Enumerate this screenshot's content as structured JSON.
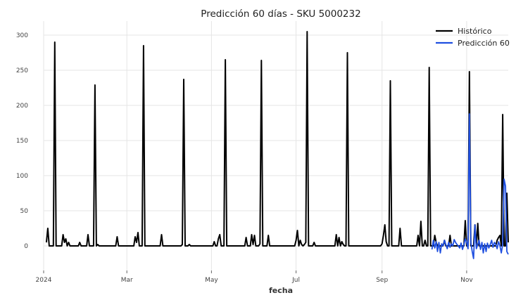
{
  "chart_data": {
    "type": "line",
    "title": "Predicción 60 días - SKU 5000232",
    "xlabel": "fecha",
    "ylabel": "",
    "x_range": [
      "2024-01-01",
      "2024-12-01"
    ],
    "ylim": [
      -35,
      320
    ],
    "yticks": [
      0,
      50,
      100,
      150,
      200,
      250,
      300
    ],
    "xticks": [
      {
        "date": "2024-01-01",
        "label": "2024"
      },
      {
        "date": "2024-03-01",
        "label": "Mar"
      },
      {
        "date": "2024-05-01",
        "label": "May"
      },
      {
        "date": "2024-07-01",
        "label": "Jul"
      },
      {
        "date": "2024-09-01",
        "label": "Sep"
      },
      {
        "date": "2024-11-01",
        "label": "Nov"
      }
    ],
    "grid": true,
    "legend_position": "top-right",
    "series": [
      {
        "name": "Histórico",
        "color": "#000000",
        "points": [
          [
            "2024-01-03",
            5
          ],
          [
            "2024-01-04",
            25
          ],
          [
            "2024-01-05",
            0
          ],
          [
            "2024-01-08",
            0
          ],
          [
            "2024-01-09",
            290
          ],
          [
            "2024-01-10",
            0
          ],
          [
            "2024-01-14",
            0
          ],
          [
            "2024-01-15",
            16
          ],
          [
            "2024-01-16",
            5
          ],
          [
            "2024-01-17",
            10
          ],
          [
            "2024-01-18",
            0
          ],
          [
            "2024-01-19",
            5
          ],
          [
            "2024-01-20",
            0
          ],
          [
            "2024-01-26",
            0
          ],
          [
            "2024-01-27",
            5
          ],
          [
            "2024-01-28",
            0
          ],
          [
            "2024-02-01",
            0
          ],
          [
            "2024-02-02",
            16
          ],
          [
            "2024-02-03",
            0
          ],
          [
            "2024-02-06",
            0
          ],
          [
            "2024-02-07",
            229
          ],
          [
            "2024-02-08",
            0
          ],
          [
            "2024-02-09",
            2
          ],
          [
            "2024-02-10",
            0
          ],
          [
            "2024-02-22",
            0
          ],
          [
            "2024-02-23",
            13
          ],
          [
            "2024-02-24",
            0
          ],
          [
            "2024-03-06",
            0
          ],
          [
            "2024-03-07",
            13
          ],
          [
            "2024-03-08",
            5
          ],
          [
            "2024-03-09",
            19
          ],
          [
            "2024-03-10",
            0
          ],
          [
            "2024-03-12",
            0
          ],
          [
            "2024-03-13",
            285
          ],
          [
            "2024-03-14",
            0
          ],
          [
            "2024-03-25",
            0
          ],
          [
            "2024-03-26",
            16
          ],
          [
            "2024-03-27",
            0
          ],
          [
            "2024-04-09",
            0
          ],
          [
            "2024-04-10",
            2
          ],
          [
            "2024-04-11",
            237
          ],
          [
            "2024-04-12",
            0
          ],
          [
            "2024-04-14",
            0
          ],
          [
            "2024-04-15",
            2
          ],
          [
            "2024-04-16",
            0
          ],
          [
            "2024-05-02",
            0
          ],
          [
            "2024-05-03",
            6
          ],
          [
            "2024-05-04",
            0
          ],
          [
            "2024-05-05",
            0
          ],
          [
            "2024-05-06",
            10
          ],
          [
            "2024-05-07",
            16
          ],
          [
            "2024-05-08",
            0
          ],
          [
            "2024-05-10",
            0
          ],
          [
            "2024-05-11",
            265
          ],
          [
            "2024-05-12",
            0
          ],
          [
            "2024-05-25",
            0
          ],
          [
            "2024-05-26",
            12
          ],
          [
            "2024-05-27",
            0
          ],
          [
            "2024-05-29",
            0
          ],
          [
            "2024-05-30",
            16
          ],
          [
            "2024-05-31",
            2
          ],
          [
            "2024-06-01",
            15
          ],
          [
            "2024-06-02",
            0
          ],
          [
            "2024-06-04",
            0
          ],
          [
            "2024-06-05",
            3
          ],
          [
            "2024-06-06",
            264
          ],
          [
            "2024-06-07",
            0
          ],
          [
            "2024-06-10",
            0
          ],
          [
            "2024-06-11",
            15
          ],
          [
            "2024-06-12",
            0
          ],
          [
            "2024-06-30",
            0
          ],
          [
            "2024-07-01",
            8
          ],
          [
            "2024-07-02",
            22
          ],
          [
            "2024-07-03",
            0
          ],
          [
            "2024-07-04",
            8
          ],
          [
            "2024-07-05",
            2
          ],
          [
            "2024-07-06",
            0
          ],
          [
            "2024-07-07",
            2
          ],
          [
            "2024-07-08",
            5
          ],
          [
            "2024-07-09",
            305
          ],
          [
            "2024-07-10",
            0
          ],
          [
            "2024-07-13",
            0
          ],
          [
            "2024-07-14",
            5
          ],
          [
            "2024-07-15",
            0
          ],
          [
            "2024-07-29",
            0
          ],
          [
            "2024-07-30",
            16
          ],
          [
            "2024-07-31",
            0
          ],
          [
            "2024-08-01",
            12
          ],
          [
            "2024-08-02",
            0
          ],
          [
            "2024-08-03",
            6
          ],
          [
            "2024-08-04",
            2
          ],
          [
            "2024-08-05",
            0
          ],
          [
            "2024-08-06",
            0
          ],
          [
            "2024-08-07",
            275
          ],
          [
            "2024-08-08",
            0
          ],
          [
            "2024-08-31",
            0
          ],
          [
            "2024-09-01",
            3
          ],
          [
            "2024-09-02",
            15
          ],
          [
            "2024-09-03",
            30
          ],
          [
            "2024-09-04",
            6
          ],
          [
            "2024-09-05",
            0
          ],
          [
            "2024-09-06",
            0
          ],
          [
            "2024-09-07",
            235
          ],
          [
            "2024-09-08",
            0
          ],
          [
            "2024-09-13",
            0
          ],
          [
            "2024-09-14",
            25
          ],
          [
            "2024-09-15",
            0
          ],
          [
            "2024-09-26",
            0
          ],
          [
            "2024-09-27",
            15
          ],
          [
            "2024-09-28",
            0
          ],
          [
            "2024-09-29",
            35
          ],
          [
            "2024-09-30",
            0
          ],
          [
            "2024-10-01",
            0
          ],
          [
            "2024-10-02",
            8
          ],
          [
            "2024-10-03",
            0
          ],
          [
            "2024-10-04",
            0
          ],
          [
            "2024-10-05",
            254
          ],
          [
            "2024-10-06",
            0
          ],
          [
            "2024-10-08",
            0
          ],
          [
            "2024-10-09",
            15
          ],
          [
            "2024-10-10",
            5
          ],
          [
            "2024-10-11",
            0
          ],
          [
            "2024-10-15",
            0
          ],
          [
            "2024-10-16",
            8
          ],
          [
            "2024-10-17",
            0
          ],
          [
            "2024-10-19",
            0
          ],
          [
            "2024-10-20",
            15
          ],
          [
            "2024-10-21",
            0
          ],
          [
            "2024-10-30",
            0
          ],
          [
            "2024-10-31",
            36
          ],
          [
            "2024-11-01",
            0
          ],
          [
            "2024-11-02",
            0
          ],
          [
            "2024-11-03",
            248
          ],
          [
            "2024-11-04",
            0
          ],
          [
            "2024-11-06",
            0
          ],
          [
            "2024-11-07",
            30
          ],
          [
            "2024-11-08",
            0
          ],
          [
            "2024-11-09",
            32
          ],
          [
            "2024-11-10",
            0
          ],
          [
            "2024-11-22",
            0
          ],
          [
            "2024-11-23",
            8
          ],
          [
            "2024-11-24",
            12
          ],
          [
            "2024-11-25",
            15
          ],
          [
            "2024-11-26",
            0
          ],
          [
            "2024-11-27",
            187
          ],
          [
            "2024-11-28",
            0
          ],
          [
            "2024-11-29",
            0
          ],
          [
            "2024-11-30",
            75
          ],
          [
            "2024-12-01",
            5
          ]
        ]
      },
      {
        "name": "Predicción 60",
        "color": "#1f4fe0",
        "points": [
          [
            "2024-10-07",
            -5
          ],
          [
            "2024-10-08",
            8
          ],
          [
            "2024-10-09",
            -3
          ],
          [
            "2024-10-10",
            6
          ],
          [
            "2024-10-11",
            -8
          ],
          [
            "2024-10-12",
            5
          ],
          [
            "2024-10-13",
            -10
          ],
          [
            "2024-10-14",
            3
          ],
          [
            "2024-10-15",
            0
          ],
          [
            "2024-10-16",
            8
          ],
          [
            "2024-10-17",
            2
          ],
          [
            "2024-10-18",
            -4
          ],
          [
            "2024-10-19",
            5
          ],
          [
            "2024-10-20",
            -2
          ],
          [
            "2024-10-21",
            3
          ],
          [
            "2024-10-22",
            0
          ],
          [
            "2024-10-23",
            9
          ],
          [
            "2024-10-24",
            5
          ],
          [
            "2024-10-25",
            2
          ],
          [
            "2024-10-26",
            0
          ],
          [
            "2024-10-27",
            -3
          ],
          [
            "2024-10-28",
            4
          ],
          [
            "2024-10-29",
            -5
          ],
          [
            "2024-10-30",
            2
          ],
          [
            "2024-10-31",
            10
          ],
          [
            "2024-11-01",
            5
          ],
          [
            "2024-11-02",
            -4
          ],
          [
            "2024-11-03",
            188
          ],
          [
            "2024-11-04",
            5
          ],
          [
            "2024-11-05",
            -8
          ],
          [
            "2024-11-06",
            -18
          ],
          [
            "2024-11-07",
            30
          ],
          [
            "2024-11-08",
            -4
          ],
          [
            "2024-11-09",
            2
          ],
          [
            "2024-11-10",
            8
          ],
          [
            "2024-11-11",
            -5
          ],
          [
            "2024-11-12",
            5
          ],
          [
            "2024-11-13",
            -10
          ],
          [
            "2024-11-14",
            3
          ],
          [
            "2024-11-15",
            -8
          ],
          [
            "2024-11-16",
            4
          ],
          [
            "2024-11-17",
            -3
          ],
          [
            "2024-11-18",
            2
          ],
          [
            "2024-11-19",
            8
          ],
          [
            "2024-11-20",
            -2
          ],
          [
            "2024-11-21",
            5
          ],
          [
            "2024-11-22",
            2
          ],
          [
            "2024-11-23",
            -4
          ],
          [
            "2024-11-24",
            6
          ],
          [
            "2024-11-25",
            0
          ],
          [
            "2024-11-26",
            -10
          ],
          [
            "2024-11-27",
            2
          ],
          [
            "2024-11-28",
            95
          ],
          [
            "2024-11-29",
            85
          ],
          [
            "2024-11-30",
            -8
          ],
          [
            "2024-12-01",
            -12
          ]
        ]
      }
    ]
  }
}
